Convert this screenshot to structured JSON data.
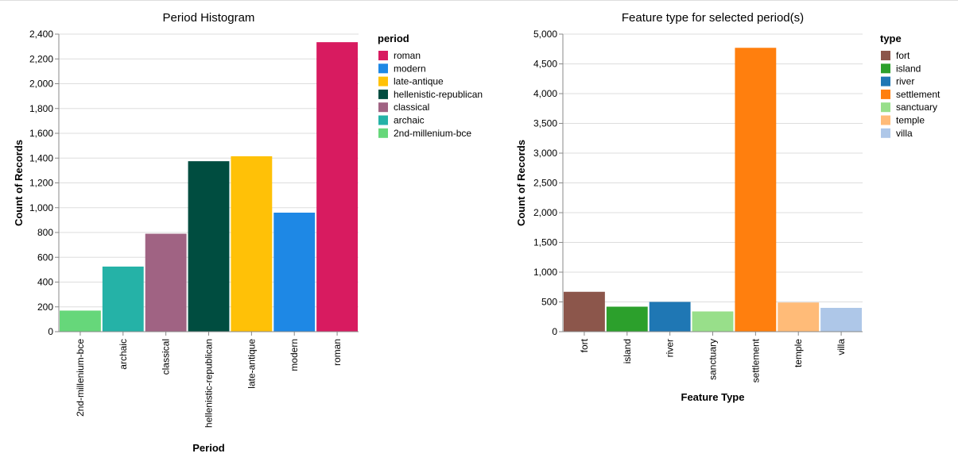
{
  "chart_data": [
    {
      "type": "bar",
      "title": "Period Histogram",
      "xlabel": "Period",
      "ylabel": "Count of Records",
      "ylim": [
        0,
        2400
      ],
      "yticks": [
        0,
        200,
        400,
        600,
        800,
        1000,
        1200,
        1400,
        1600,
        1800,
        2000,
        2200,
        2400
      ],
      "ytick_labels": [
        "0",
        "200",
        "400",
        "600",
        "800",
        "1,000",
        "1,200",
        "1,400",
        "1,600",
        "1,800",
        "2,000",
        "2,200",
        "2,400"
      ],
      "categories": [
        "2nd-millenium-bce",
        "archaic",
        "classical",
        "hellenistic-republican",
        "late-antique",
        "modern",
        "roman"
      ],
      "values": [
        170,
        525,
        790,
        1375,
        1415,
        960,
        2335
      ],
      "colors": [
        "#66d77a",
        "#25b2a7",
        "#a06383",
        "#004d40",
        "#ffc107",
        "#1e88e5",
        "#d81b60"
      ],
      "grid": true,
      "legend": {
        "title": "period",
        "placement": "right",
        "items": [
          {
            "label": "roman",
            "color": "#d81b60"
          },
          {
            "label": "modern",
            "color": "#1e88e5"
          },
          {
            "label": "late-antique",
            "color": "#ffc107"
          },
          {
            "label": "hellenistic-republican",
            "color": "#004d40"
          },
          {
            "label": "classical",
            "color": "#a06383"
          },
          {
            "label": "archaic",
            "color": "#25b2a7"
          },
          {
            "label": "2nd-millenium-bce",
            "color": "#66d77a"
          }
        ]
      }
    },
    {
      "type": "bar",
      "title": "Feature type for selected period(s)",
      "xlabel": "Feature Type",
      "ylabel": "Count of Records",
      "ylim": [
        0,
        5000
      ],
      "yticks": [
        0,
        500,
        1000,
        1500,
        2000,
        2500,
        3000,
        3500,
        4000,
        4500,
        5000
      ],
      "ytick_labels": [
        "0",
        "500",
        "1,000",
        "1,500",
        "2,000",
        "2,500",
        "3,000",
        "3,500",
        "4,000",
        "4,500",
        "5,000"
      ],
      "categories": [
        "fort",
        "island",
        "river",
        "sanctuary",
        "settlement",
        "temple",
        "villa"
      ],
      "values": [
        670,
        420,
        500,
        340,
        4770,
        490,
        400
      ],
      "colors": [
        "#8c564b",
        "#2ca02c",
        "#1f77b4",
        "#98df8a",
        "#ff7f0e",
        "#ffbb78",
        "#aec7e8"
      ],
      "grid": true,
      "legend": {
        "title": "type",
        "placement": "right",
        "items": [
          {
            "label": "fort",
            "color": "#8c564b"
          },
          {
            "label": "island",
            "color": "#2ca02c"
          },
          {
            "label": "river",
            "color": "#1f77b4"
          },
          {
            "label": "settlement",
            "color": "#ff7f0e"
          },
          {
            "label": "sanctuary",
            "color": "#98df8a"
          },
          {
            "label": "temple",
            "color": "#ffbb78"
          },
          {
            "label": "villa",
            "color": "#aec7e8"
          }
        ]
      }
    }
  ]
}
